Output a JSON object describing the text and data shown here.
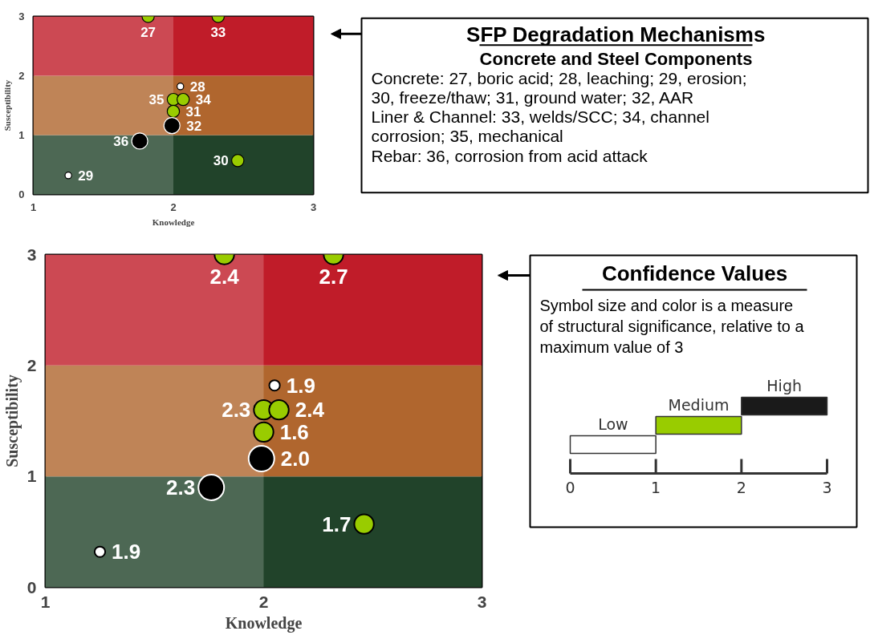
{
  "chart_data": [
    {
      "type": "bubble",
      "xlabel": "Knowledge",
      "ylabel": "Susceptibility",
      "xlim": [
        1,
        3
      ],
      "ylim": [
        0,
        3
      ],
      "xticks": [
        1,
        2,
        3
      ],
      "yticks": [
        0,
        1,
        2,
        3
      ],
      "grid": false,
      "x": [
        1.82,
        2.32,
        2.05,
        2.0,
        2.07,
        2.0,
        1.99,
        1.76,
        2.46,
        1.25
      ],
      "values": [
        3.0,
        3.0,
        1.82,
        1.6,
        1.6,
        1.4,
        1.16,
        0.9,
        0.57,
        0.32
      ],
      "sizes": [
        0.58,
        0.58,
        0.17,
        0.58,
        0.58,
        0.58,
        1,
        1,
        0.58,
        0.17
      ],
      "colors": [
        "#99cc00",
        "#99cc00",
        "#ffffff",
        "#99cc00",
        "#99cc00",
        "#99cc00",
        "#000000",
        "#000000",
        "#99cc00",
        "#ffffff"
      ],
      "annotations": [
        {
          "text": "27",
          "x": 1.82,
          "y": 3.0
        },
        {
          "text": "33",
          "x": 2.32,
          "y": 3.0
        },
        {
          "text": "28",
          "x": 2.05,
          "y": 1.82
        },
        {
          "text": "35",
          "x": 2.0,
          "y": 1.6
        },
        {
          "text": "34",
          "x": 2.07,
          "y": 1.6
        },
        {
          "text": "31",
          "x": 2.0,
          "y": 1.4
        },
        {
          "text": "32",
          "x": 1.99,
          "y": 1.16
        },
        {
          "text": "36",
          "x": 1.76,
          "y": 0.9
        },
        {
          "text": "30",
          "x": 2.46,
          "y": 0.57
        },
        {
          "text": "29",
          "x": 1.25,
          "y": 0.32
        }
      ],
      "bands": [
        {
          "axis": "y",
          "from": 0,
          "to": 1,
          "color": "#21432a"
        },
        {
          "axis": "y",
          "from": 1,
          "to": 2,
          "color": "#b0662e"
        },
        {
          "axis": "y",
          "from": 2,
          "to": 3,
          "color": "#c01c29"
        },
        {
          "axis": "x",
          "from": 1,
          "to": 2,
          "color": "#ffffff"
        }
      ]
    },
    {
      "type": "other",
      "title": "SFP Degradation Mechanisms",
      "subtitle": "Concrete and Steel Components",
      "annotations": [
        "Concrete: 27, boric acid; 28, leaching; 29, erosion;",
        "30, freeze/thaw; 31, ground water; 32, AAR",
        "Liner & Channel: 33, welds/SCC; 34, channel",
        "corrosion; 35, mechanical",
        "Rebar: 36, corrosion from acid attack"
      ]
    },
    {
      "type": "bubble",
      "xlabel": "Knowledge",
      "ylabel": "Susceptibility",
      "xlim": [
        1,
        3
      ],
      "ylim": [
        0,
        3
      ],
      "xticks": [
        1,
        2,
        3
      ],
      "yticks": [
        0,
        1,
        2,
        3
      ],
      "grid": false,
      "x": [
        1.82,
        2.32,
        2.05,
        2.0,
        2.07,
        2.0,
        1.99,
        1.76,
        2.46,
        1.25
      ],
      "values": [
        3.0,
        3.0,
        1.82,
        1.6,
        1.6,
        1.4,
        1.16,
        0.9,
        0.57,
        0.32
      ],
      "sizes": [
        0.58,
        0.58,
        0.17,
        0.58,
        0.58,
        0.58,
        1,
        1,
        0.58,
        0.17
      ],
      "colors": [
        "#99cc00",
        "#99cc00",
        "#ffffff",
        "#99cc00",
        "#99cc00",
        "#99cc00",
        "#000000",
        "#000000",
        "#99cc00",
        "#ffffff"
      ],
      "annotations": [
        {
          "text": "2.4",
          "x": 1.82,
          "y": 3.0
        },
        {
          "text": "2.7",
          "x": 2.32,
          "y": 3.0
        },
        {
          "text": "1.9",
          "x": 2.05,
          "y": 1.82
        },
        {
          "text": "2.3",
          "x": 2.0,
          "y": 1.6
        },
        {
          "text": "2.4",
          "x": 2.07,
          "y": 1.6
        },
        {
          "text": "1.6",
          "x": 2.0,
          "y": 1.4
        },
        {
          "text": "2.0",
          "x": 1.99,
          "y": 1.16
        },
        {
          "text": "2.3",
          "x": 1.76,
          "y": 0.9
        },
        {
          "text": "1.7",
          "x": 2.46,
          "y": 0.57
        },
        {
          "text": "1.9",
          "x": 1.25,
          "y": 0.32
        }
      ],
      "bands": [
        {
          "axis": "y",
          "from": 0,
          "to": 1,
          "color": "#21432a"
        },
        {
          "axis": "y",
          "from": 1,
          "to": 2,
          "color": "#b0662e"
        },
        {
          "axis": "y",
          "from": 2,
          "to": 3,
          "color": "#c01c29"
        },
        {
          "axis": "x",
          "from": 1,
          "to": 2,
          "color": "#ffffff"
        }
      ]
    },
    {
      "type": "bar",
      "orientation": "horizontal",
      "title": "Confidence Values",
      "annotations": [
        "Symbol size and color is a measure",
        "of structural significance, relative to a",
        "maximum value of 3",
        "High",
        "Medium",
        "Low"
      ],
      "categories": [
        null,
        null,
        null
      ],
      "base": [
        2,
        1,
        0
      ],
      "values": [
        1,
        1,
        1
      ],
      "colors": [
        "#1a1a1a",
        "#99cc00",
        "#ffffff"
      ],
      "xlim": [
        0,
        3
      ],
      "xticks": [
        0,
        1,
        2,
        3
      ],
      "tick_labels": "x"
    }
  ]
}
